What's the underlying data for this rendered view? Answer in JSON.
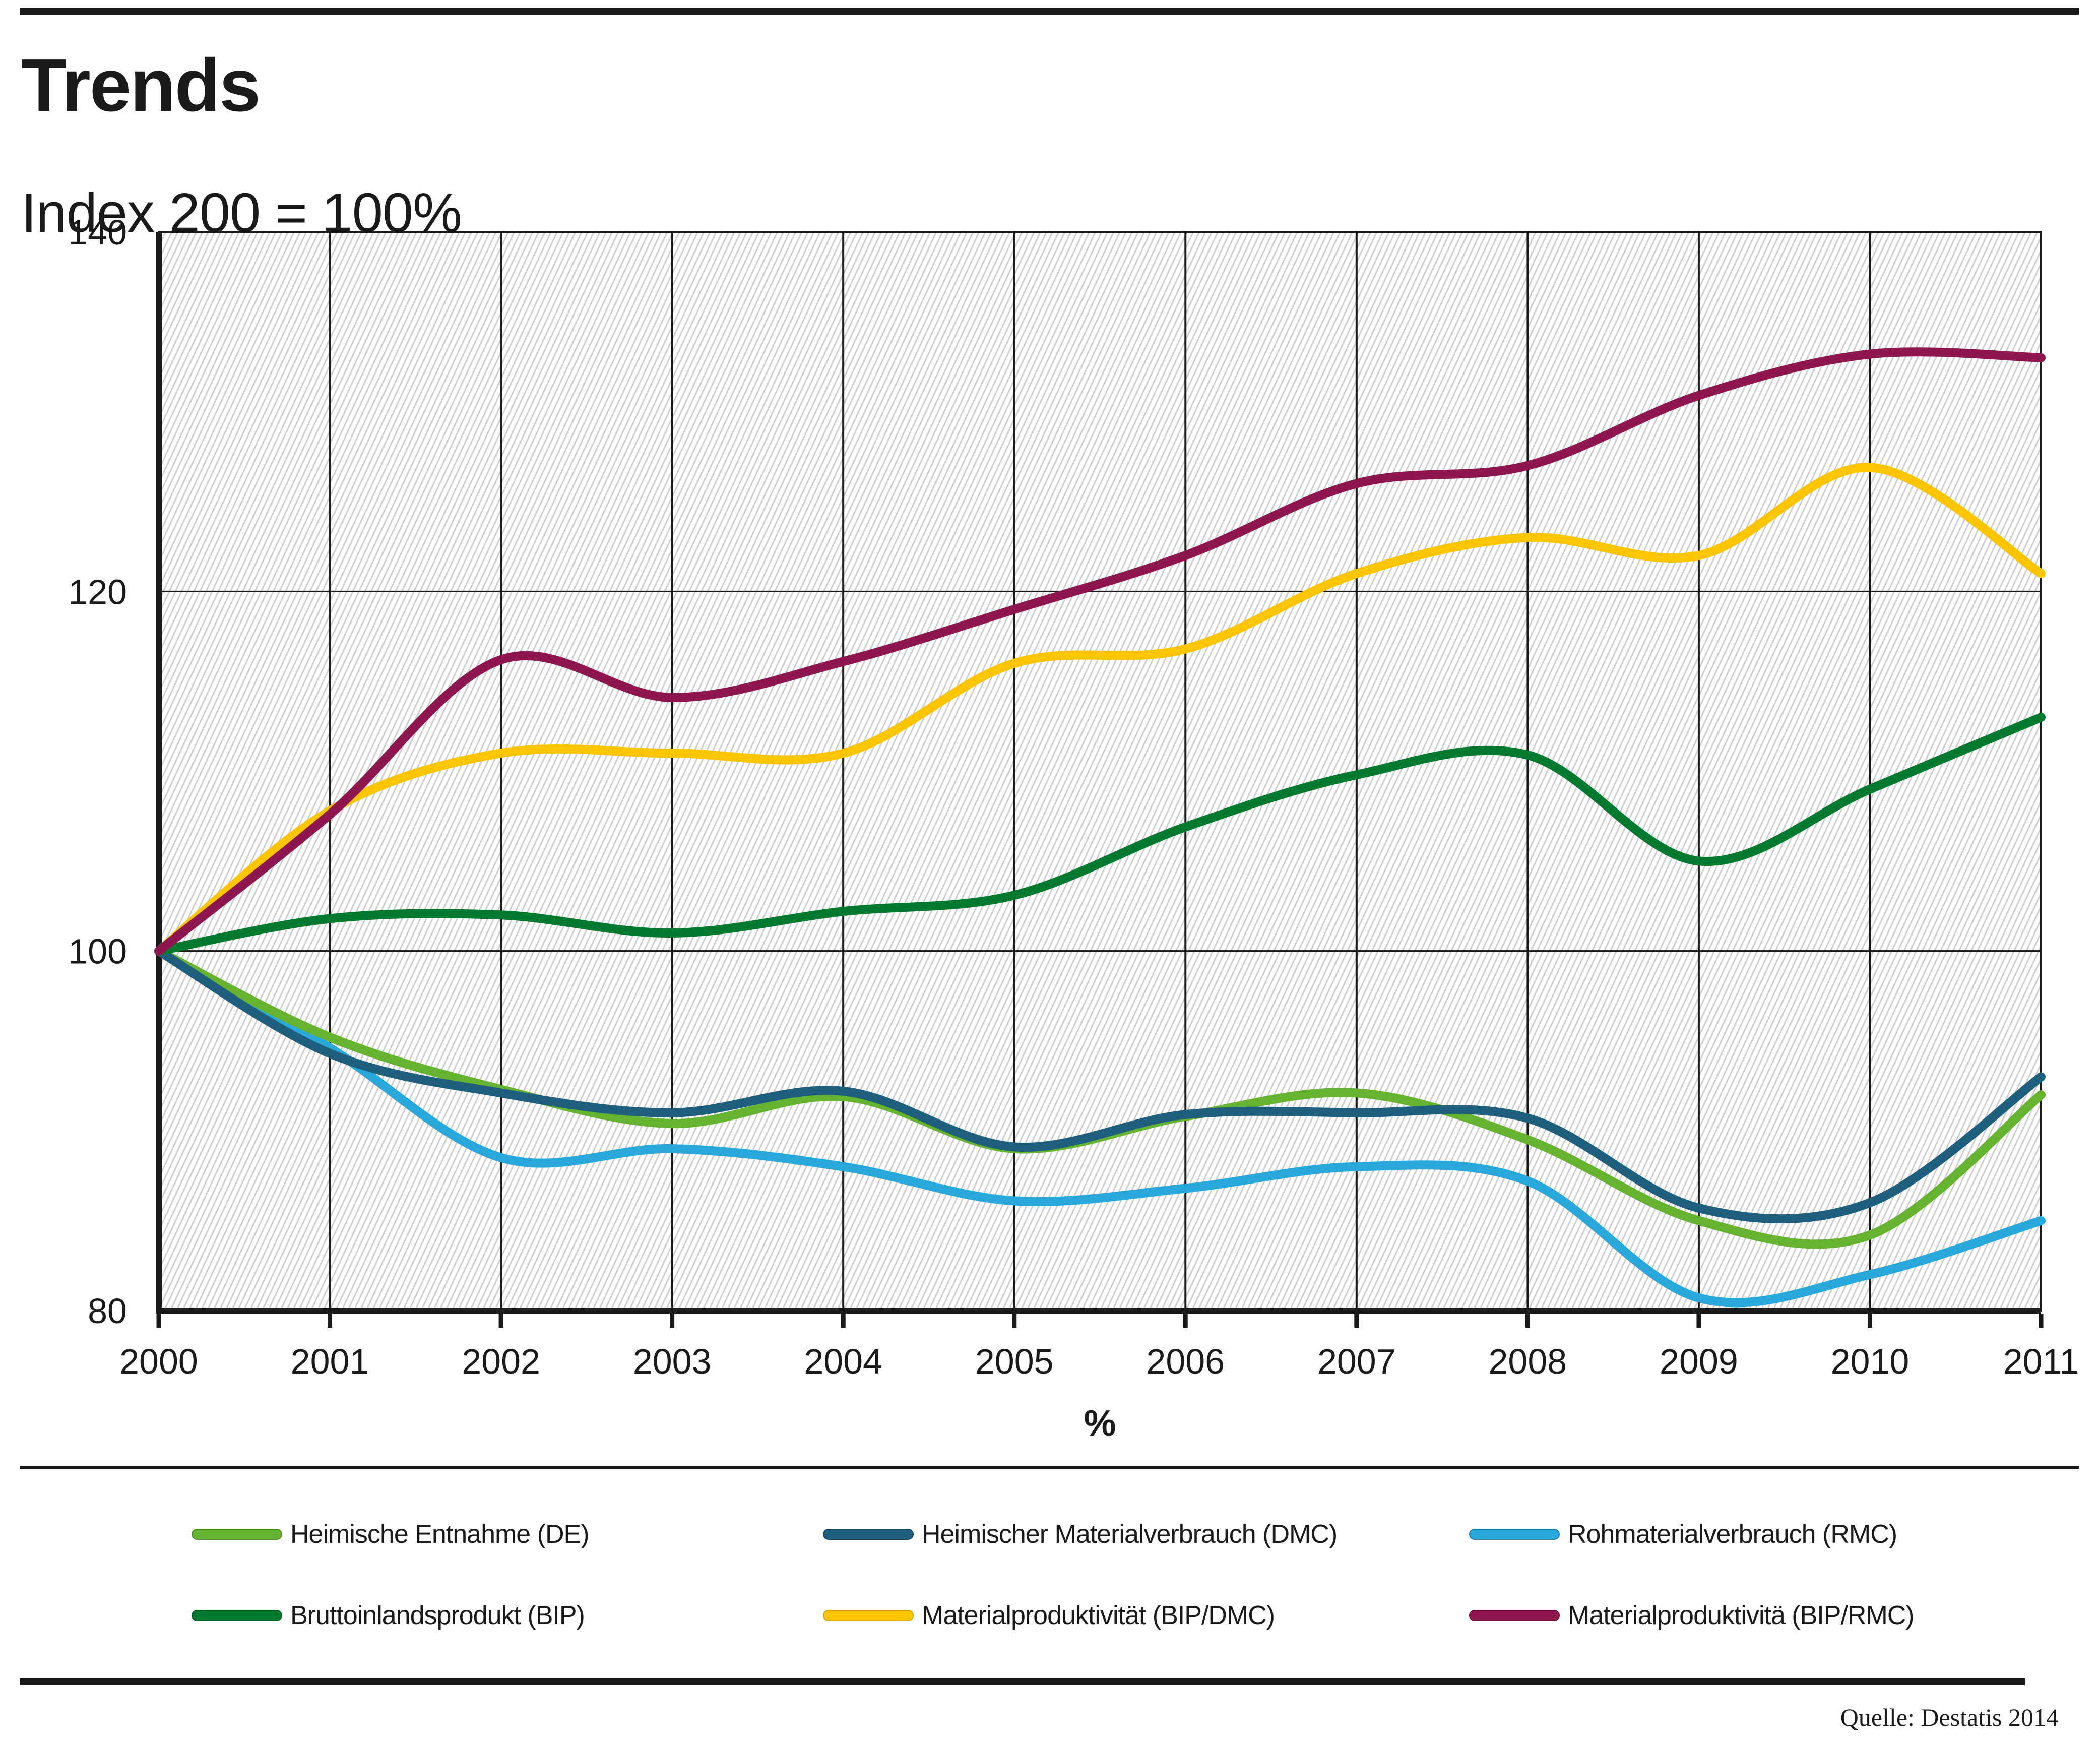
{
  "chart_data": {
    "type": "line",
    "title": "Trends",
    "subtitle": "Index 200 = 100%",
    "xlabel": "%",
    "x": [
      2000,
      2001,
      2002,
      2003,
      2004,
      2005,
      2006,
      2007,
      2008,
      2009,
      2010,
      2011
    ],
    "ylim": [
      80,
      140
    ],
    "yticks": [
      140,
      120,
      100,
      80
    ],
    "grid_y": [
      120,
      100
    ],
    "grid_on": true,
    "legend_position": "bottom",
    "legend_columns": 3,
    "hatch_background": true,
    "draw_order": [
      2,
      0,
      1,
      3,
      4,
      5
    ],
    "series": [
      {
        "name": "Heimische Entnahme (DE)",
        "color": "#65b32e",
        "edge": "#4a8c1f",
        "values": [
          100,
          95.2,
          92.3,
          90.4,
          91.9,
          89.0,
          90.8,
          92.1,
          89.5,
          85.0,
          84.2,
          92.0
        ]
      },
      {
        "name": "Heimischer Materialverbrauch (DMC)",
        "color": "#1e5f7e",
        "edge": "#14465e",
        "values": [
          100,
          94.3,
          92.1,
          91.0,
          92.2,
          89.1,
          90.9,
          91.0,
          90.7,
          85.7,
          86.0,
          93.0
        ]
      },
      {
        "name": "Rohmaterialverbrauch (RMC)",
        "color": "#29a8dc",
        "edge": "#1c82ad",
        "values": [
          100,
          94.6,
          88.5,
          89.0,
          88.0,
          86.1,
          86.8,
          88.0,
          87.2,
          80.7,
          82.0,
          85.0
        ]
      },
      {
        "name": "Bruttoinlandsprodukt (BIP)",
        "color": "#007a2f",
        "edge": "#005a22",
        "values": [
          100,
          101.8,
          102.0,
          101.0,
          102.2,
          103.1,
          106.9,
          109.8,
          110.9,
          105.0,
          109.0,
          113.0
        ]
      },
      {
        "name": "Materialproduktivität (BIP/DMC)",
        "color": "#fdc400",
        "edge": "#d9a300",
        "values": [
          100,
          107.8,
          111.0,
          111.0,
          111.0,
          116.0,
          116.8,
          121.0,
          123.0,
          122.0,
          126.9,
          121.0
        ]
      },
      {
        "name": "Materialproduktivitä (BIP/RMC)",
        "color": "#8e1750",
        "edge": "#6b0f3b",
        "values": [
          100,
          107.6,
          116.2,
          114.1,
          116.1,
          119.0,
          122.0,
          126.0,
          127.0,
          130.9,
          133.2,
          133.0
        ]
      }
    ]
  },
  "footer": {
    "source": "Quelle: Destatis 2014"
  }
}
